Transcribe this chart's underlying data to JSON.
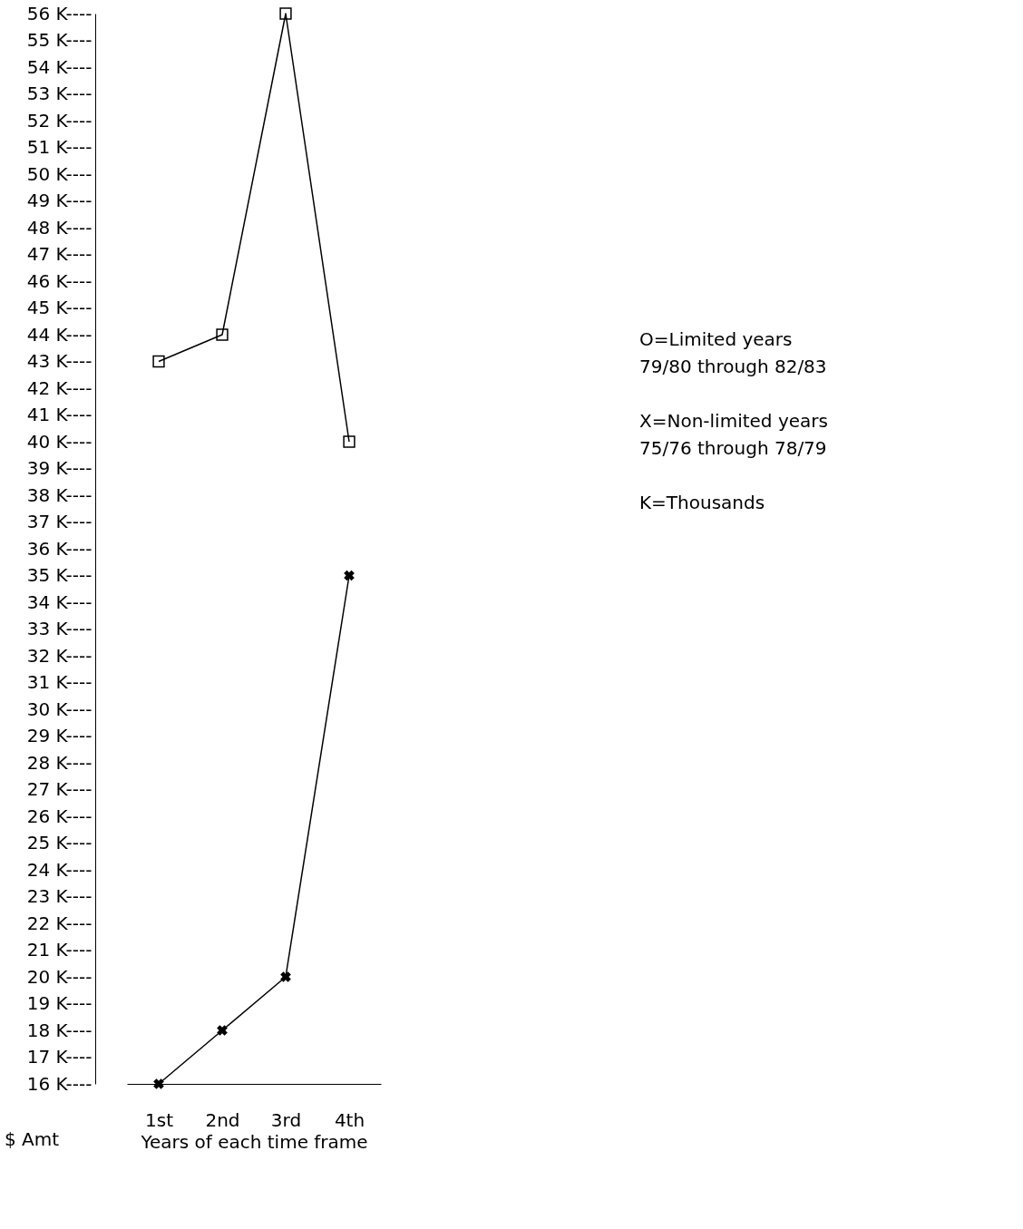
{
  "chart_data": {
    "type": "line",
    "xlabel": "Years of each time frame",
    "ylabel": "$ Amt",
    "categories": [
      "1st",
      "2nd",
      "3rd",
      "4th"
    ],
    "series": [
      {
        "color": "#000000",
        "marker": "square",
        "values": [
          43,
          44,
          56,
          40
        ]
      },
      {
        "color": "#000000",
        "marker": "cross",
        "values": [
          16,
          18,
          20,
          35
        ]
      }
    ],
    "ylim": [
      16,
      56
    ],
    "yticks": [
      {
        "value": 16,
        "label": "16 K----"
      },
      {
        "value": 17,
        "label": "17 K----"
      },
      {
        "value": 18,
        "label": "18 K----"
      },
      {
        "value": 19,
        "label": "19 K----"
      },
      {
        "value": 20,
        "label": "20 K----"
      },
      {
        "value": 21,
        "label": "21 K----"
      },
      {
        "value": 22,
        "label": "22 K----"
      },
      {
        "value": 23,
        "label": "23 K----"
      },
      {
        "value": 24,
        "label": "24 K----"
      },
      {
        "value": 25,
        "label": "25 K----"
      },
      {
        "value": 26,
        "label": "26 K----"
      },
      {
        "value": 27,
        "label": "27 K----"
      },
      {
        "value": 28,
        "label": "28 K----"
      },
      {
        "value": 29,
        "label": "29 K----"
      },
      {
        "value": 30,
        "label": "30 K----"
      },
      {
        "value": 31,
        "label": "31 K----"
      },
      {
        "value": 32,
        "label": "32 K----"
      },
      {
        "value": 33,
        "label": "33 K----"
      },
      {
        "value": 34,
        "label": "34 K----"
      },
      {
        "value": 35,
        "label": "35 K----"
      },
      {
        "value": 36,
        "label": "36 K----"
      },
      {
        "value": 37,
        "label": "37 K----"
      },
      {
        "value": 38,
        "label": "38 K----"
      },
      {
        "value": 39,
        "label": "39 K----"
      },
      {
        "value": 40,
        "label": "40 K----"
      },
      {
        "value": 41,
        "label": "41 K----"
      },
      {
        "value": 42,
        "label": "42 K----"
      },
      {
        "value": 43,
        "label": "43 K----"
      },
      {
        "value": 44,
        "label": "44 K----"
      },
      {
        "value": 45,
        "label": "45 K----"
      },
      {
        "value": 46,
        "label": "46 K----"
      },
      {
        "value": 47,
        "label": "47 K----"
      },
      {
        "value": 48,
        "label": "48 K----"
      },
      {
        "value": 49,
        "label": "49 K----"
      },
      {
        "value": 50,
        "label": "50 K----"
      },
      {
        "value": 51,
        "label": "51 K----"
      },
      {
        "value": 52,
        "label": "52 K----"
      },
      {
        "value": 53,
        "label": "53 K----"
      },
      {
        "value": 54,
        "label": "54 K----"
      },
      {
        "value": 55,
        "label": "55 K----"
      },
      {
        "value": 56,
        "label": "56 K----"
      }
    ],
    "grid": false,
    "line_style": "solid",
    "annotations": [
      "O=Limited years\n79/80 through 82/83",
      "X=Non-limited years\n75/76 through 78/79",
      "K=Thousands"
    ]
  }
}
